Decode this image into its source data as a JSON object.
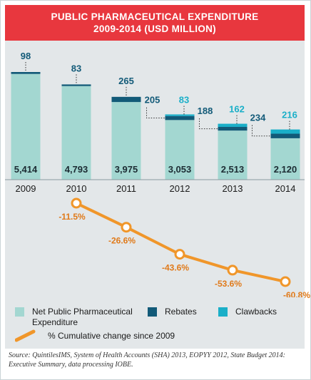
{
  "title_line1": "PUBLIC PHARMACEUTICAL EXPENDITURE",
  "title_line2": "2009-2014 (USD MILLION)",
  "colors": {
    "net": "#a3d7d1",
    "rebates": "#125a78",
    "clawbacks": "#1aafc8",
    "line": "#f0962a",
    "title_bg": "#e8373e",
    "panel_bg": "#e3e7e9"
  },
  "chart_data": [
    {
      "type": "bar",
      "stacked": true,
      "categories": [
        "2009",
        "2010",
        "2011",
        "2012",
        "2013",
        "2014"
      ],
      "series": [
        {
          "name": "Net Public Pharmaceutical Expenditure",
          "values": [
            5414,
            4793,
            3975,
            3053,
            2513,
            2120
          ]
        },
        {
          "name": "Rebates",
          "values": [
            98,
            83,
            265,
            205,
            188,
            234
          ]
        },
        {
          "name": "Clawbacks",
          "values": [
            0,
            0,
            0,
            83,
            162,
            216
          ]
        }
      ],
      "value_labels": {
        "net": [
          "5,414",
          "4,793",
          "3,975",
          "3,053",
          "2,513",
          "2,120"
        ],
        "rebates": [
          "98",
          "83",
          "265",
          "205",
          "188",
          "234"
        ],
        "clawbacks": [
          "",
          "",
          "",
          "83",
          "162",
          "216"
        ]
      },
      "ylim": [
        0,
        6000
      ]
    },
    {
      "type": "line",
      "x": [
        "2009",
        "2010",
        "2011",
        "2012",
        "2013",
        "2014"
      ],
      "series": [
        {
          "name": "% Cumulative change since 2009",
          "values": [
            0,
            -11.5,
            -26.6,
            -43.6,
            -53.6,
            -60.8
          ]
        }
      ],
      "point_labels": [
        "",
        "-11.5%",
        "-26.6%",
        "-43.6%",
        "-53.6%",
        "-60.8%"
      ],
      "ylim": [
        -60.8,
        0
      ]
    }
  ],
  "legend": {
    "net": "Net Public Pharmaceutical Expenditure",
    "rebates": "Rebates",
    "clawbacks": "Clawbacks",
    "line": "% Cumulative change since 2009"
  },
  "source": "Source: QuintilesIMS, System of Health Accounts (SHA) 2013, EOPYY 2012, State Budget 2014: Executive Summary, data processing IOBE."
}
